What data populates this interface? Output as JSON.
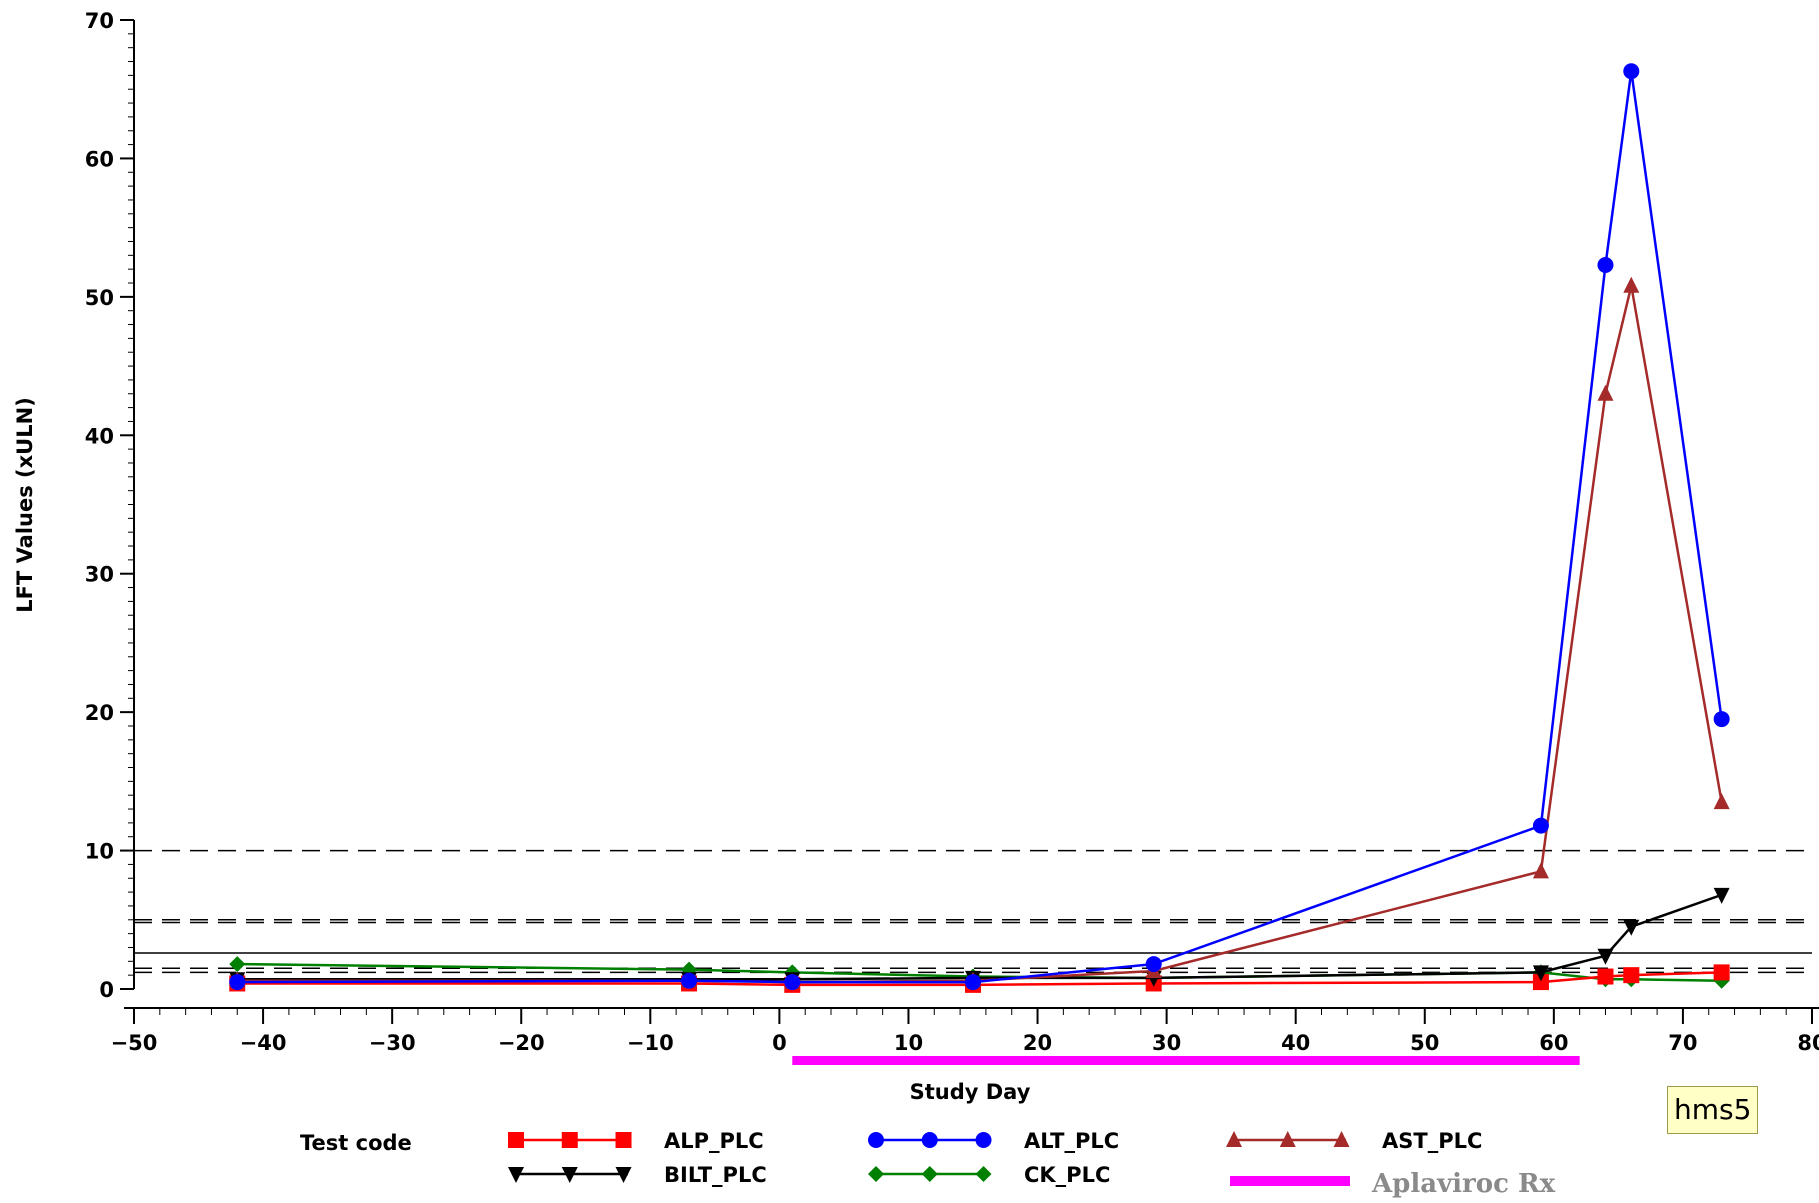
{
  "chart_data": {
    "type": "line",
    "title": "",
    "xlabel": "Study Day",
    "ylabel": "LFT Values (xULN)",
    "xlim": [
      -50,
      80
    ],
    "ylim": [
      0,
      70
    ],
    "x_ticks": [
      -50,
      -40,
      -30,
      -20,
      -10,
      0,
      10,
      20,
      30,
      40,
      50,
      60,
      70,
      80
    ],
    "x_tick_labels": [
      "−50",
      "−40",
      "−30",
      "−20",
      "−10",
      "0",
      "10",
      "20",
      "30",
      "40",
      "50",
      "60",
      "70",
      "80"
    ],
    "y_ticks": [
      0,
      10,
      20,
      30,
      40,
      50,
      60,
      70
    ],
    "y_tick_labels": [
      "0",
      "10",
      "20",
      "30",
      "40",
      "50",
      "60",
      "70"
    ],
    "grid": false,
    "reference_lines": [
      {
        "y": 10,
        "style": "dashed"
      },
      {
        "y": 5,
        "style": "dashed"
      },
      {
        "y": 4.8,
        "style": "dashed"
      },
      {
        "y": 2.6,
        "style": "solid"
      },
      {
        "y": 1.5,
        "style": "dashed"
      },
      {
        "y": 1.2,
        "style": "dashed"
      }
    ],
    "legend": {
      "title": "Test code",
      "position": "bottom"
    },
    "series": [
      {
        "name": "ALP_PLC",
        "color": "#ff0000",
        "marker": "square",
        "points": [
          [
            -42,
            0.4
          ],
          [
            -7,
            0.4
          ],
          [
            1,
            0.3
          ],
          [
            15,
            0.3
          ],
          [
            29,
            0.4
          ],
          [
            59,
            0.5
          ],
          [
            64,
            0.9
          ],
          [
            66,
            1.0
          ],
          [
            73,
            1.2
          ]
        ]
      },
      {
        "name": "ALT_PLC",
        "color": "#0000ff",
        "marker": "circle",
        "points": [
          [
            -42,
            0.5
          ],
          [
            -7,
            0.6
          ],
          [
            1,
            0.5
          ],
          [
            15,
            0.5
          ],
          [
            29,
            1.8
          ],
          [
            59,
            11.8
          ],
          [
            64,
            52.3
          ],
          [
            66,
            66.3
          ],
          [
            73,
            19.5
          ]
        ]
      },
      {
        "name": "AST_PLC",
        "color": "#a52a2a",
        "marker": "triangle",
        "points": [
          [
            -42,
            0.6
          ],
          [
            -7,
            0.6
          ],
          [
            1,
            0.5
          ],
          [
            15,
            0.6
          ],
          [
            29,
            1.3
          ],
          [
            59,
            8.5
          ],
          [
            64,
            43.0
          ],
          [
            66,
            50.8
          ],
          [
            73,
            13.5
          ]
        ]
      },
      {
        "name": "BILT_PLC",
        "color": "#000000",
        "marker": "triangle-down",
        "points": [
          [
            -42,
            0.7
          ],
          [
            -7,
            0.7
          ],
          [
            1,
            0.7
          ],
          [
            15,
            0.8
          ],
          [
            29,
            0.8
          ],
          [
            59,
            1.2
          ],
          [
            64,
            2.4
          ],
          [
            66,
            4.5
          ],
          [
            73,
            6.8
          ]
        ]
      },
      {
        "name": "CK_PLC",
        "color": "#008000",
        "marker": "diamond",
        "points": [
          [
            -42,
            1.8
          ],
          [
            -7,
            1.4
          ],
          [
            1,
            1.2
          ],
          [
            15,
            0.9
          ],
          [
            29,
            0.8
          ],
          [
            59,
            1.2
          ],
          [
            64,
            0.7
          ],
          [
            66,
            0.7
          ],
          [
            73,
            0.6
          ]
        ]
      }
    ],
    "treatment_bar": {
      "label": "Aplaviroc Rx",
      "color": "#ff00ff",
      "x_start": 1,
      "x_end": 62
    },
    "annotation": "hms5"
  }
}
